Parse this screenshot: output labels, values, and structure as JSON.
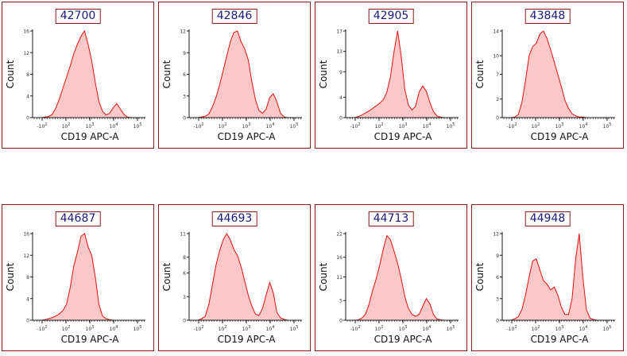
{
  "theme": {
    "fill": "#ffc8c8",
    "stroke": "#e01010",
    "axis": "#1a1a1a",
    "frame": "#8b1a1a",
    "title": "#1a1a7a"
  },
  "chart_data": [
    {
      "type": "area",
      "title": "42700",
      "xlabel": "CD19 APC-A",
      "ylabel": "Count",
      "ymax": 16,
      "yticks": [
        0,
        4,
        8,
        12,
        16
      ],
      "xticks": [
        "-10^2",
        "10^2",
        "10^3",
        "10^4",
        "10^5"
      ],
      "xrange": [
        -1,
        5.3
      ],
      "x": [
        -0.5,
        -0.3,
        -0.1,
        0.1,
        0.3,
        0.5,
        0.7,
        0.9,
        1.1,
        1.3,
        1.5,
        1.7,
        1.9,
        2.1,
        2.3,
        2.5,
        2.7,
        2.9,
        3.1,
        3.3,
        3.5,
        3.7,
        3.9,
        4.1,
        4.3,
        4.5
      ],
      "values": [
        0,
        0.1,
        0.2,
        0.6,
        1.8,
        3.5,
        5.5,
        7.5,
        9.5,
        11.8,
        13.5,
        15.0,
        16.0,
        13.5,
        10.5,
        6.5,
        3.0,
        1.2,
        0.5,
        0.8,
        1.8,
        2.6,
        1.6,
        0.6,
        0.1,
        0
      ]
    },
    {
      "type": "area",
      "title": "42846",
      "xlabel": "CD19 APC-A",
      "ylabel": "Count",
      "ymax": 12,
      "yticks": [
        0,
        3,
        6,
        9,
        12
      ],
      "xticks": [
        "-10^2",
        "10^2",
        "10^3",
        "10^4",
        "10^5"
      ],
      "xrange": [
        -1,
        5.3
      ],
      "x": [
        -0.5,
        -0.3,
        -0.1,
        0.1,
        0.3,
        0.5,
        0.7,
        0.9,
        1.1,
        1.3,
        1.5,
        1.7,
        1.9,
        2.1,
        2.3,
        2.5,
        2.7,
        2.9,
        3.1,
        3.3,
        3.5,
        3.7,
        3.9,
        4.1,
        4.3,
        4.5
      ],
      "values": [
        0,
        0.1,
        0.2,
        0.5,
        1.5,
        2.8,
        4.5,
        6.5,
        8.5,
        10.5,
        11.8,
        12.0,
        10.5,
        9.5,
        8.0,
        5.0,
        2.5,
        1.0,
        0.6,
        1.2,
        2.8,
        3.3,
        2.2,
        0.6,
        0.1,
        0
      ]
    },
    {
      "type": "area",
      "title": "42905",
      "xlabel": "CD19 APC-A",
      "ylabel": "Count",
      "ymax": 17,
      "yticks": [
        0,
        4,
        9,
        13,
        17
      ],
      "xticks": [
        "-10^2",
        "10^2",
        "10^3",
        "10^4",
        "10^5"
      ],
      "xrange": [
        -1,
        5.3
      ],
      "x": [
        -0.5,
        -0.3,
        -0.1,
        0.1,
        0.3,
        0.5,
        0.7,
        0.9,
        1.1,
        1.3,
        1.5,
        1.7,
        1.9,
        2.1,
        2.3,
        2.5,
        2.7,
        2.9,
        3.1,
        3.3,
        3.5,
        3.7,
        3.9,
        4.1,
        4.3,
        4.5
      ],
      "values": [
        0,
        0.2,
        0.5,
        0.9,
        1.3,
        1.8,
        2.3,
        2.8,
        3.5,
        5.0,
        8.0,
        13.0,
        17.0,
        12.0,
        5.5,
        2.5,
        1.5,
        2.2,
        5.0,
        6.2,
        5.2,
        3.0,
        1.2,
        0.3,
        0.1,
        0
      ]
    },
    {
      "type": "area",
      "title": "43848",
      "xlabel": "CD19 APC-A",
      "ylabel": "Count",
      "ymax": 14,
      "yticks": [
        0,
        3,
        7,
        10,
        14
      ],
      "xticks": [
        "-10^2",
        "10^2",
        "10^3",
        "10^4",
        "10^5"
      ],
      "xrange": [
        -1,
        5.3
      ],
      "x": [
        -0.5,
        -0.3,
        -0.1,
        0.1,
        0.3,
        0.5,
        0.7,
        0.9,
        1.1,
        1.3,
        1.5,
        1.7,
        1.9,
        2.1,
        2.3,
        2.5,
        2.7,
        2.9,
        3.1,
        3.3,
        3.5,
        3.7,
        3.9,
        4.1,
        4.3,
        4.5
      ],
      "values": [
        0,
        0.1,
        0.5,
        2.5,
        6.0,
        10.0,
        11.5,
        12.0,
        13.5,
        14.0,
        12.8,
        11.0,
        9.0,
        7.0,
        5.0,
        2.8,
        1.5,
        0.6,
        0.3,
        0.1,
        0.1,
        0,
        0,
        0,
        0,
        0
      ]
    },
    {
      "type": "area",
      "title": "44687",
      "xlabel": "CD19 APC-A",
      "ylabel": "Count",
      "ymax": 16,
      "yticks": [
        0,
        4,
        8,
        12,
        16
      ],
      "xticks": [
        "-10^2",
        "10^2",
        "10^3",
        "10^4",
        "10^5"
      ],
      "xrange": [
        -1,
        5.3
      ],
      "x": [
        -0.5,
        -0.3,
        -0.1,
        0.1,
        0.3,
        0.5,
        0.7,
        0.9,
        1.1,
        1.3,
        1.5,
        1.7,
        1.9,
        2.1,
        2.3,
        2.5,
        2.7,
        2.9,
        3.1,
        3.3,
        3.5,
        3.7,
        3.9,
        4.1,
        4.3,
        4.5
      ],
      "values": [
        0,
        0.1,
        0.3,
        0.5,
        0.8,
        1.2,
        1.8,
        3.0,
        6.0,
        10.0,
        12.5,
        15.5,
        16.0,
        13.5,
        12.0,
        8.0,
        3.0,
        0.8,
        0.3,
        0.1,
        0,
        0,
        0,
        0,
        0,
        0
      ]
    },
    {
      "type": "area",
      "title": "44693",
      "xlabel": "CD19 APC-A",
      "ylabel": "Count",
      "ymax": 11,
      "yticks": [
        0,
        3,
        6,
        8,
        11
      ],
      "xticks": [
        "-10^2",
        "10^2",
        "10^3",
        "10^4",
        "10^5"
      ],
      "xrange": [
        -1,
        5.3
      ],
      "x": [
        -0.5,
        -0.3,
        -0.1,
        0.1,
        0.3,
        0.5,
        0.7,
        0.9,
        1.1,
        1.3,
        1.5,
        1.7,
        1.9,
        2.1,
        2.3,
        2.5,
        2.7,
        2.9,
        3.1,
        3.3,
        3.5,
        3.7,
        3.9,
        4.1,
        4.3,
        4.5
      ],
      "values": [
        0,
        0.2,
        0.5,
        2.0,
        4.5,
        7.0,
        8.8,
        10.2,
        11.0,
        10.2,
        9.0,
        8.2,
        6.8,
        5.0,
        3.2,
        1.8,
        0.8,
        0.6,
        1.5,
        3.2,
        4.8,
        3.5,
        1.0,
        0.3,
        0.1,
        0
      ]
    },
    {
      "type": "area",
      "title": "44713",
      "xlabel": "CD19 APC-A",
      "ylabel": "Count",
      "ymax": 22,
      "yticks": [
        0,
        5,
        11,
        16,
        22
      ],
      "xticks": [
        "-10^2",
        "10^2",
        "10^3",
        "10^4",
        "10^5"
      ],
      "xrange": [
        -1,
        5.3
      ],
      "x": [
        -0.5,
        -0.3,
        -0.1,
        0.1,
        0.3,
        0.5,
        0.7,
        0.9,
        1.1,
        1.3,
        1.5,
        1.7,
        1.9,
        2.1,
        2.3,
        2.5,
        2.7,
        2.9,
        3.1,
        3.3,
        3.5,
        3.7,
        3.9,
        4.1,
        4.3,
        4.5
      ],
      "values": [
        0,
        0.1,
        0.5,
        1.5,
        4.0,
        7.5,
        10.5,
        14.0,
        18.0,
        21.5,
        20.5,
        17.5,
        14.5,
        10.5,
        6.0,
        3.0,
        1.5,
        1.0,
        1.5,
        3.5,
        5.5,
        4.2,
        1.5,
        0.3,
        0.1,
        0
      ]
    },
    {
      "type": "area",
      "title": "44948",
      "xlabel": "CD19 APC-A",
      "ylabel": "Count",
      "ymax": 12,
      "yticks": [
        0,
        3,
        6,
        9,
        12
      ],
      "xticks": [
        "-10^2",
        "10^2",
        "10^3",
        "10^4",
        "10^5"
      ],
      "xrange": [
        -1,
        5.3
      ],
      "x": [
        -0.5,
        -0.3,
        -0.1,
        0.1,
        0.3,
        0.5,
        0.7,
        0.9,
        1.1,
        1.3,
        1.5,
        1.7,
        1.9,
        2.1,
        2.3,
        2.5,
        2.7,
        2.9,
        3.1,
        3.3,
        3.5,
        3.7,
        3.9,
        4.1,
        4.3,
        4.5
      ],
      "values": [
        0,
        0.2,
        0.5,
        1.5,
        3.5,
        6.0,
        8.2,
        8.5,
        7.0,
        5.5,
        5.0,
        4.2,
        4.6,
        3.5,
        1.8,
        0.8,
        0.8,
        3.0,
        8.5,
        12.0,
        6.0,
        1.5,
        0.3,
        0.1,
        0,
        0
      ]
    }
  ]
}
